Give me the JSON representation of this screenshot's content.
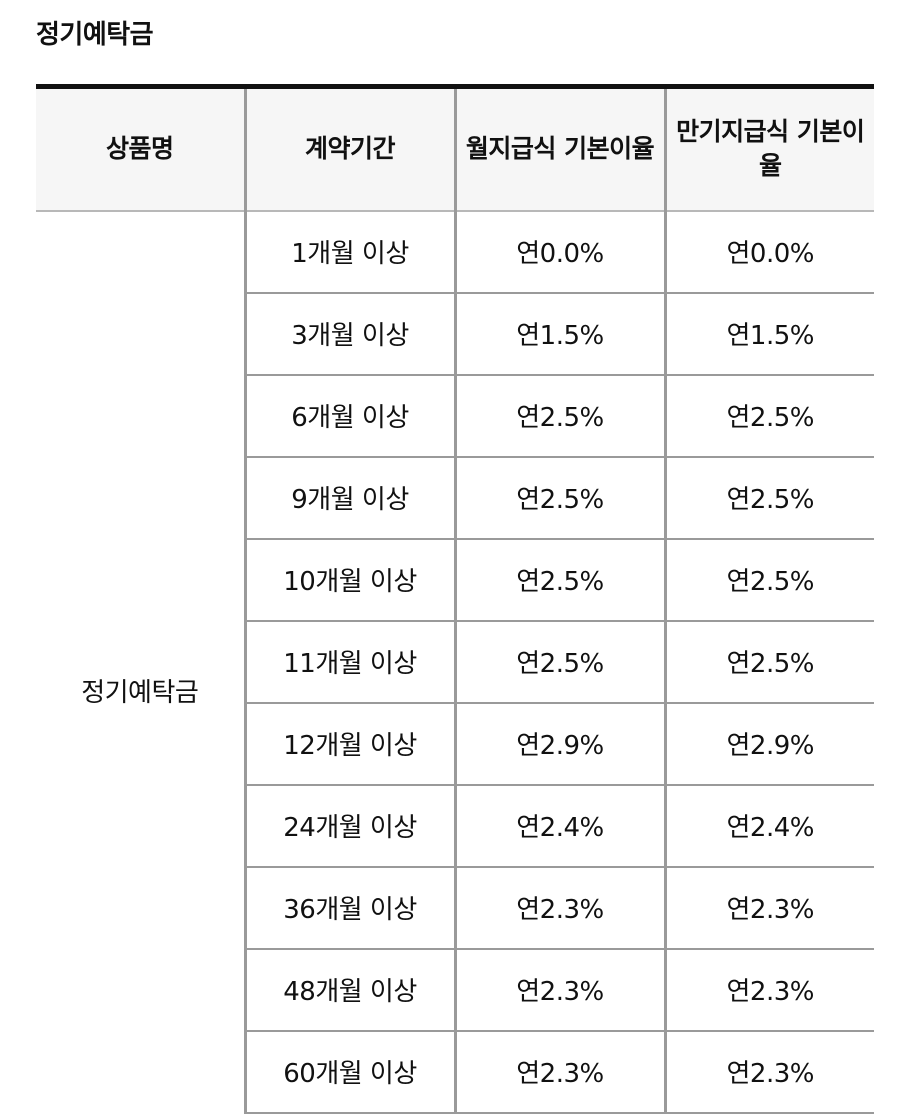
{
  "page": {
    "title": "정기예탁금"
  },
  "table": {
    "headers": [
      "상품명",
      "계약기간",
      "월지급식 기본이율",
      "만기지급식 기본이율"
    ],
    "product_name": "정기예탁금",
    "rows": [
      {
        "period": "1개월 이상",
        "monthly_rate": "연0.0%",
        "maturity_rate": "연0.0%"
      },
      {
        "period": "3개월 이상",
        "monthly_rate": "연1.5%",
        "maturity_rate": "연1.5%"
      },
      {
        "period": "6개월 이상",
        "monthly_rate": "연2.5%",
        "maturity_rate": "연2.5%"
      },
      {
        "period": "9개월 이상",
        "monthly_rate": "연2.5%",
        "maturity_rate": "연2.5%"
      },
      {
        "period": "10개월 이상",
        "monthly_rate": "연2.5%",
        "maturity_rate": "연2.5%"
      },
      {
        "period": "11개월 이상",
        "monthly_rate": "연2.5%",
        "maturity_rate": "연2.5%"
      },
      {
        "period": "12개월 이상",
        "monthly_rate": "연2.9%",
        "maturity_rate": "연2.9%"
      },
      {
        "period": "24개월 이상",
        "monthly_rate": "연2.4%",
        "maturity_rate": "연2.4%"
      },
      {
        "period": "36개월 이상",
        "monthly_rate": "연2.3%",
        "maturity_rate": "연2.3%"
      },
      {
        "period": "48개월 이상",
        "monthly_rate": "연2.3%",
        "maturity_rate": "연2.3%"
      },
      {
        "period": "60개월 이상",
        "monthly_rate": "연2.3%",
        "maturity_rate": "연2.3%"
      }
    ]
  }
}
